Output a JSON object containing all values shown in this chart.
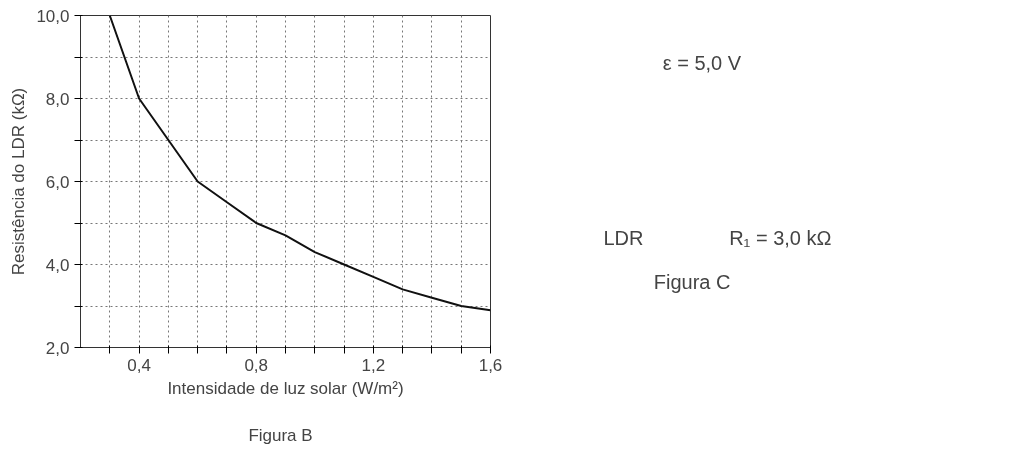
{
  "chart_data": [
    {
      "type": "line",
      "xlabel": "Intensidade de luz solar (W/m²)",
      "ylabel": "Resistência do LDR (kΩ)",
      "annotations": [
        "Figura B"
      ],
      "x": [
        0.3,
        0.4,
        0.5,
        0.6,
        0.7,
        0.8,
        0.9,
        1.0,
        1.1,
        1.2,
        1.3,
        1.4,
        1.5,
        1.6
      ],
      "series": [
        {
          "color": "#111111",
          "values": [
            10.0,
            8.0,
            7.0,
            6.0,
            5.5,
            5.0,
            4.7,
            4.3,
            4.0,
            3.7,
            3.4,
            3.2,
            3.0,
            2.9
          ]
        }
      ],
      "xlim": [
        0.2,
        1.6
      ],
      "ylim": [
        2.0,
        10.0
      ],
      "xticks": [
        {
          "value": 0.3,
          "label": null
        },
        {
          "value": 0.4,
          "label": "0,4"
        },
        {
          "value": 0.5,
          "label": null
        },
        {
          "value": 0.6,
          "label": null
        },
        {
          "value": 0.7,
          "label": null
        },
        {
          "value": 0.8,
          "label": "0,8"
        },
        {
          "value": 0.9,
          "label": null
        },
        {
          "value": 1.0,
          "label": null
        },
        {
          "value": 1.1,
          "label": null
        },
        {
          "value": 1.2,
          "label": "1,2"
        },
        {
          "value": 1.3,
          "label": null
        },
        {
          "value": 1.4,
          "label": null
        },
        {
          "value": 1.5,
          "label": null
        },
        {
          "value": 1.6,
          "label": "1,6"
        }
      ],
      "yticks": [
        {
          "value": 2.0,
          "label": "2,0"
        },
        {
          "value": 3.0,
          "label": null
        },
        {
          "value": 4.0,
          "label": "4,0"
        },
        {
          "value": 5.0,
          "label": null
        },
        {
          "value": 6.0,
          "label": "6,0"
        },
        {
          "value": 7.0,
          "label": null
        },
        {
          "value": 8.0,
          "label": "8,0"
        },
        {
          "value": 9.0,
          "label": null
        },
        {
          "value": 10.0,
          "label": "10,0"
        }
      ],
      "grid": true,
      "line_style": "solid",
      "marker": "none"
    },
    {
      "type": "other",
      "annotations": [
        "ε = 5,0 V",
        "LDR",
        "R₁ = 3,0 kΩ",
        "Figura C"
      ]
    }
  ]
}
